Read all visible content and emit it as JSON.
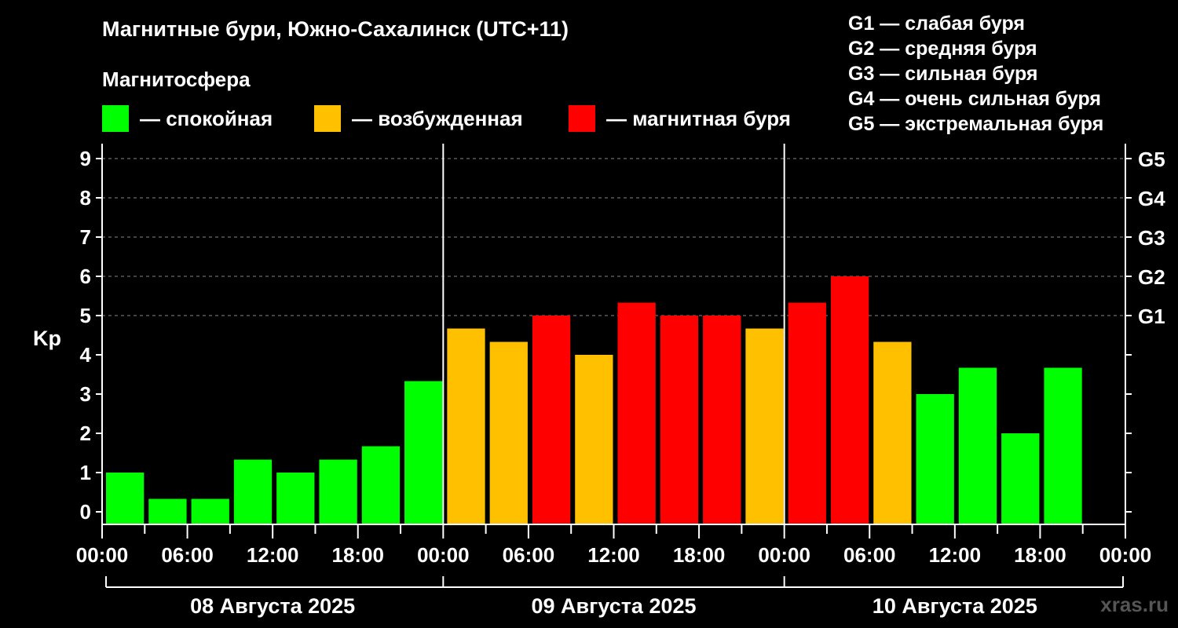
{
  "title": "Магнитные бури, Южно-Сахалинск (UTC+11)",
  "subtitle": "Магнитосфера",
  "legend": [
    {
      "label": "— спокойная",
      "color": "#00ff00"
    },
    {
      "label": "— возбужденная",
      "color": "#ffc000"
    },
    {
      "label": "— магнитная буря",
      "color": "#ff0000"
    }
  ],
  "g_scale": [
    "G1 — слабая буря",
    "G2 — средняя буря",
    "G3 — сильная буря",
    "G4 — очень сильная буря",
    "G5 — экстремальная буря"
  ],
  "watermark": "xras.ru",
  "chart_data": {
    "type": "bar",
    "ylabel": "Kp",
    "ylim": [
      0,
      9
    ],
    "yticks": [
      "0",
      "1",
      "2",
      "3",
      "4",
      "5",
      "6",
      "7",
      "8",
      "9"
    ],
    "right_ticks": [
      {
        "value": 5,
        "label": "G1"
      },
      {
        "value": 6,
        "label": "G2"
      },
      {
        "value": 7,
        "label": "G3"
      },
      {
        "value": 8,
        "label": "G4"
      },
      {
        "value": 9,
        "label": "G5"
      }
    ],
    "xticks": [
      "00:00",
      "06:00",
      "12:00",
      "18:00",
      "00:00",
      "06:00",
      "12:00",
      "18:00",
      "00:00",
      "06:00",
      "12:00",
      "18:00",
      "00:00"
    ],
    "days": [
      "08 Августа 2025",
      "09 Августа 2025",
      "10 Августа 2025"
    ],
    "interval_hours": 3,
    "values": [
      1.0,
      0.33,
      0.33,
      1.33,
      1.0,
      1.33,
      1.67,
      3.33,
      4.67,
      4.33,
      5.0,
      4.0,
      5.33,
      5.0,
      5.0,
      4.67,
      5.33,
      6.0,
      4.33,
      3.0,
      3.67,
      2.0,
      3.67
    ],
    "colors": [
      "#00ff00",
      "#00ff00",
      "#00ff00",
      "#00ff00",
      "#00ff00",
      "#00ff00",
      "#00ff00",
      "#00ff00",
      "#ffc000",
      "#ffc000",
      "#ff0000",
      "#ffc000",
      "#ff0000",
      "#ff0000",
      "#ff0000",
      "#ffc000",
      "#ff0000",
      "#ff0000",
      "#ffc000",
      "#00ff00",
      "#00ff00",
      "#00ff00",
      "#00ff00"
    ],
    "grid": true
  }
}
